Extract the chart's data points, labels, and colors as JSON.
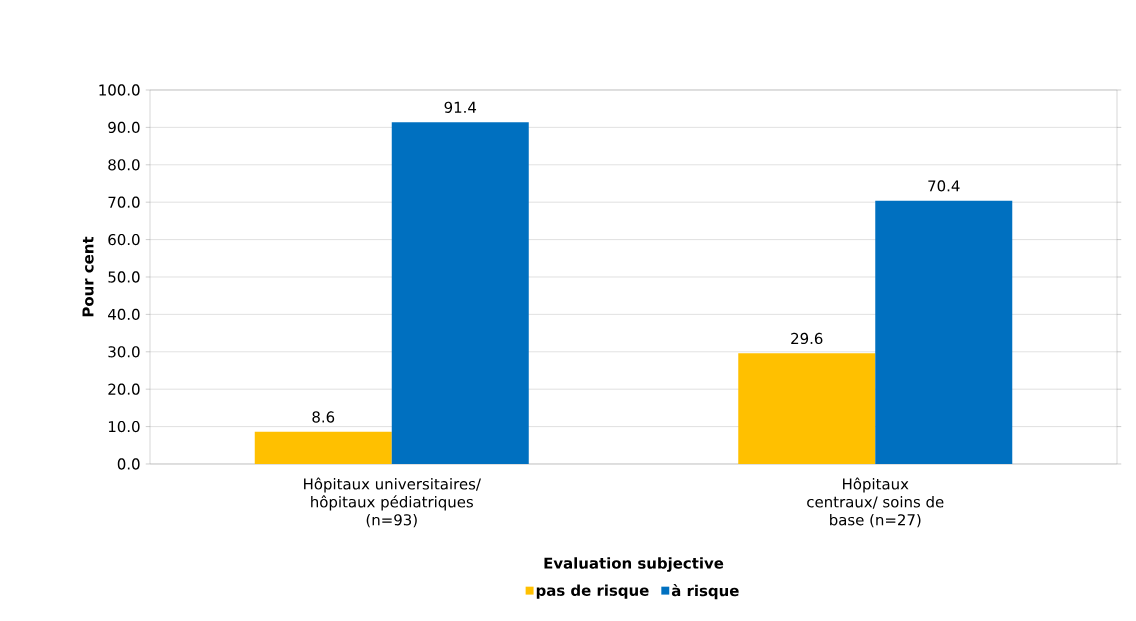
{
  "chart_data": {
    "type": "bar",
    "ylabel": "Pour cent",
    "legend_title": "Evaluation subjective",
    "categories": [
      "Hôpitaux universitaires/ hôpitaux pédiatriques (n=93)",
      "Hôpitaux centraux/ soins de base (n=27)"
    ],
    "series": [
      {
        "name": "pas de risque",
        "color": "#ffc000",
        "values": [
          8.6,
          29.6
        ]
      },
      {
        "name": "à risque",
        "color": "#0070c0",
        "values": [
          91.4,
          70.4
        ]
      }
    ],
    "ylim": [
      0,
      100
    ],
    "yticks": [
      {
        "value": 0,
        "label": "0.0"
      },
      {
        "value": 10,
        "label": "10.0"
      },
      {
        "value": 20,
        "label": "20.0"
      },
      {
        "value": 30,
        "label": "30.0"
      },
      {
        "value": 40,
        "label": "40.0"
      },
      {
        "value": 50,
        "label": "50.0"
      },
      {
        "value": 60,
        "label": "60.0"
      },
      {
        "value": 70,
        "label": "70.0"
      },
      {
        "value": 80,
        "label": "80.0"
      },
      {
        "value": 90,
        "label": "90.0"
      },
      {
        "value": 100,
        "label": "100.0"
      }
    ],
    "grid": "y",
    "legend": "bottom",
    "data_labels": true
  }
}
